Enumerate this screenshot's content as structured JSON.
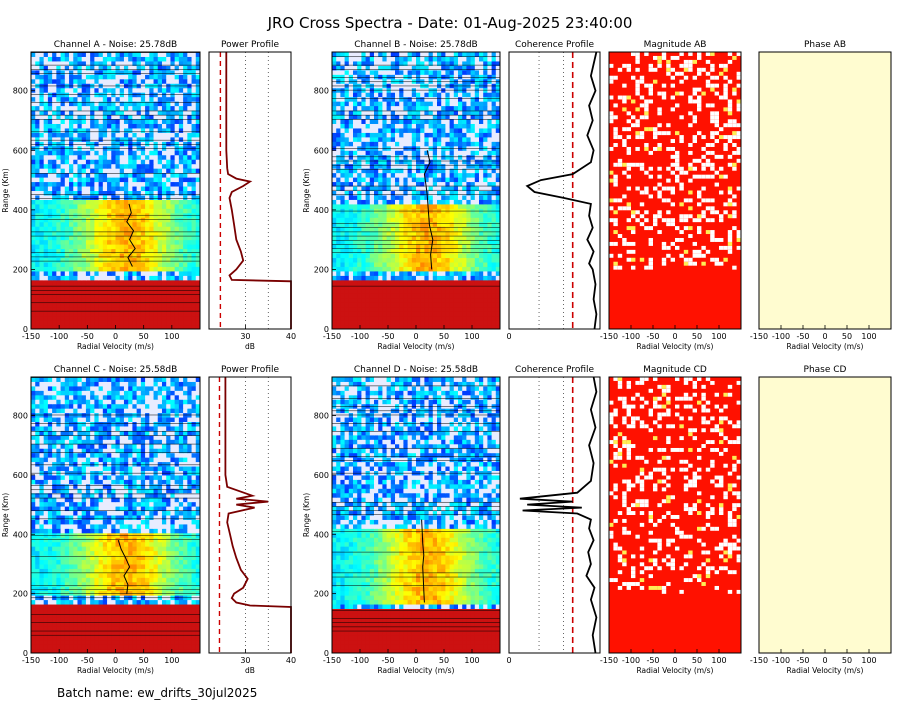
{
  "title": "JRO Cross Spectra - Date: 01-Aug-2025 23:40:00",
  "batch_name": "Batch name: ew_drifts_30jul2025",
  "colors": {
    "profile_line": "#7a0000",
    "threshold_dash": "#cc0000",
    "coherence_line": "#000000",
    "magnitude_fill": "#ff1100",
    "phase_fill": "#fffcd0",
    "spectra_low": "#cc1111"
  },
  "chart_data": [
    {
      "type": "heatmap",
      "id": "spectraA",
      "title": "Channel A - Noise: 25.78dB",
      "xlabel": "Radial Velocity (m/s)",
      "ylabel": "Range (Km)",
      "xlim": [
        -150,
        150
      ],
      "ylim": [
        0,
        930
      ],
      "xticks": [
        -150,
        -100,
        -50,
        0,
        50,
        100
      ],
      "yticks": [
        0,
        200,
        400,
        600,
        800
      ],
      "clutter_top_km": 160,
      "enhanced_band_km": [
        200,
        430
      ],
      "doppler_shift": {
        "ranges": [
          210,
          240,
          270,
          300,
          330,
          360,
          390,
          420
        ],
        "velocity": [
          30,
          22,
          35,
          25,
          32,
          20,
          28,
          24
        ]
      }
    },
    {
      "type": "line",
      "id": "powerA",
      "title": "Power Profile",
      "xlabel": "dB",
      "xlim": [
        22,
        40
      ],
      "ylim": [
        0,
        930
      ],
      "xticks": [
        30,
        40
      ],
      "threshold_db": 24.5,
      "series": [
        {
          "range": [
            0,
            160,
            165,
            180,
            200,
            230,
            260,
            300,
            350,
            400,
            440,
            460,
            480,
            495,
            505,
            520,
            540,
            600,
            700,
            800,
            930
          ],
          "db": [
            40,
            40,
            27,
            26.5,
            28,
            29.5,
            29,
            28,
            27.5,
            27,
            26.5,
            27,
            29.5,
            31,
            28,
            26.2,
            26,
            25.8,
            25.8,
            25.8,
            25.8
          ]
        }
      ]
    },
    {
      "type": "heatmap",
      "id": "spectraB",
      "title": "Channel B - Noise: 25.78dB",
      "xlabel": "Radial Velocity (m/s)",
      "ylabel": "Range (Km)",
      "xlim": [
        -150,
        150
      ],
      "ylim": [
        0,
        930
      ],
      "xticks": [
        -150,
        -100,
        -50,
        0,
        50,
        100
      ],
      "yticks": [
        0,
        200,
        400,
        600,
        800
      ],
      "clutter_top_km": 160,
      "enhanced_band_km": [
        190,
        420
      ],
      "doppler_shift": {
        "ranges": [
          200,
          250,
          300,
          350,
          400,
          450,
          480,
          520,
          560,
          600
        ],
        "velocity": [
          28,
          26,
          30,
          24,
          22,
          20,
          18,
          15,
          25,
          20
        ]
      }
    },
    {
      "type": "line",
      "id": "coherenceB",
      "title": "Coherence Profile",
      "xlim": [
        0,
        1
      ],
      "ylim": [
        0,
        930
      ],
      "xticks": [
        0
      ],
      "threshold": 0.7,
      "series": [
        {
          "range": [
            0,
            50,
            100,
            150,
            200,
            220,
            260,
            300,
            340,
            380,
            420,
            440,
            460,
            480,
            500,
            520,
            560,
            600,
            650,
            700,
            750,
            800,
            850,
            930
          ],
          "coherence": [
            0.94,
            0.96,
            0.93,
            0.95,
            0.92,
            0.88,
            0.93,
            0.86,
            0.92,
            0.88,
            0.9,
            0.6,
            0.28,
            0.2,
            0.35,
            0.7,
            0.9,
            0.93,
            0.86,
            0.92,
            0.88,
            0.95,
            0.9,
            0.96
          ]
        }
      ]
    },
    {
      "type": "heatmap",
      "id": "magnitudeAB",
      "title": "Magnitude AB",
      "xlabel": "Radial Velocity (m/s)",
      "xlim": [
        -150,
        150
      ],
      "ylim": [
        0,
        930
      ],
      "xticks": [
        -150,
        -100,
        -50,
        0,
        50,
        100
      ],
      "speckle_above_km": 200
    },
    {
      "type": "heatmap",
      "id": "phaseAB",
      "title": "Phase AB",
      "xlabel": "Radial Velocity (m/s)",
      "xlim": [
        -150,
        150
      ],
      "ylim": [
        0,
        930
      ],
      "xticks": [
        -150,
        -100,
        -50,
        0,
        50,
        100
      ]
    },
    {
      "type": "heatmap",
      "id": "spectraC",
      "title": "Channel C - Noise: 25.58dB",
      "xlabel": "Radial Velocity (m/s)",
      "ylabel": "Range (Km)",
      "xlim": [
        -150,
        150
      ],
      "ylim": [
        0,
        930
      ],
      "xticks": [
        -150,
        -100,
        -50,
        0,
        50,
        100
      ],
      "yticks": [
        0,
        200,
        400,
        600,
        800
      ],
      "clutter_top_km": 160,
      "enhanced_band_km": [
        190,
        400
      ],
      "doppler_shift": {
        "ranges": [
          200,
          230,
          260,
          290,
          320,
          350,
          380
        ],
        "velocity": [
          20,
          22,
          15,
          25,
          18,
          10,
          5
        ]
      }
    },
    {
      "type": "line",
      "id": "powerC",
      "title": "Power Profile",
      "xlabel": "dB",
      "xlim": [
        22,
        40
      ],
      "ylim": [
        0,
        930
      ],
      "xticks": [
        30,
        40
      ],
      "threshold_db": 24.3,
      "series": [
        {
          "range": [
            0,
            155,
            160,
            170,
            185,
            200,
            220,
            250,
            280,
            320,
            360,
            400,
            440,
            470,
            490,
            500,
            510,
            520,
            530,
            560,
            600,
            700,
            930
          ],
          "db": [
            40,
            40,
            31,
            28,
            27,
            27.5,
            29.5,
            30.5,
            29,
            28,
            27.2,
            26.6,
            26,
            26.3,
            32,
            28,
            35,
            28,
            31.5,
            26,
            25.6,
            25.6,
            25.6
          ]
        }
      ]
    },
    {
      "type": "heatmap",
      "id": "spectraD",
      "title": "Channel D - Noise: 25.58dB",
      "xlabel": "Radial Velocity (m/s)",
      "ylabel": "Range (Km)",
      "xlim": [
        -150,
        150
      ],
      "ylim": [
        0,
        930
      ],
      "xticks": [
        -150,
        -100,
        -50,
        0,
        50,
        100
      ],
      "yticks": [
        0,
        200,
        400,
        600,
        800
      ],
      "clutter_top_km": 155,
      "enhanced_band_km": [
        170,
        420
      ],
      "doppler_shift": {
        "ranges": [
          170,
          210,
          250,
          290,
          330,
          370,
          410,
          450
        ],
        "velocity": [
          15,
          14,
          13,
          12,
          14,
          12,
          11,
          10
        ]
      }
    },
    {
      "type": "line",
      "id": "coherenceD",
      "title": "Coherence Profile",
      "xlim": [
        0,
        1
      ],
      "ylim": [
        0,
        930
      ],
      "xticks": [
        0
      ],
      "threshold": 0.7,
      "series": [
        {
          "range": [
            0,
            60,
            120,
            180,
            220,
            260,
            300,
            340,
            380,
            420,
            450,
            470,
            480,
            490,
            500,
            510,
            520,
            540,
            580,
            640,
            700,
            760,
            820,
            880,
            930
          ],
          "coherence": [
            0.95,
            0.92,
            0.96,
            0.9,
            0.94,
            0.85,
            0.9,
            0.87,
            0.93,
            0.88,
            0.9,
            0.75,
            0.15,
            0.8,
            0.2,
            0.7,
            0.12,
            0.75,
            0.9,
            0.93,
            0.88,
            0.95,
            0.9,
            0.96,
            0.93
          ]
        }
      ]
    },
    {
      "type": "heatmap",
      "id": "magnitudeCD",
      "title": "Magnitude CD",
      "xlabel": "Radial Velocity (m/s)",
      "xlim": [
        -150,
        150
      ],
      "ylim": [
        0,
        930
      ],
      "xticks": [
        -150,
        -100,
        -50,
        0,
        50,
        100
      ],
      "speckle_above_km": 200
    },
    {
      "type": "heatmap",
      "id": "phaseCD",
      "title": "Phase CD",
      "xlabel": "Radial Velocity (m/s)",
      "xlim": [
        -150,
        150
      ],
      "ylim": [
        0,
        930
      ],
      "xticks": [
        -150,
        -100,
        -50,
        0,
        50,
        100
      ]
    }
  ]
}
